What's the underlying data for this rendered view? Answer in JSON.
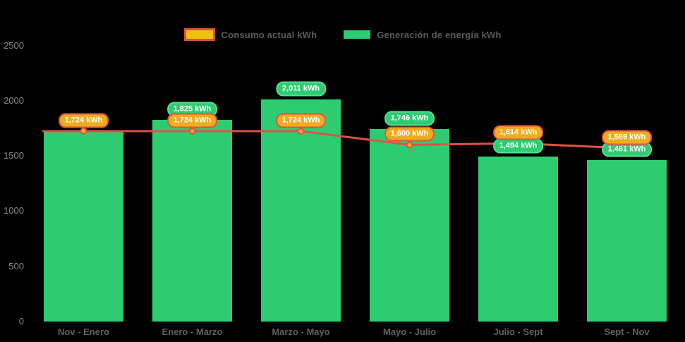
{
  "chart": {
    "background": "#000000",
    "bar_color": "#2ecc71",
    "line_color": "#de5246",
    "point_fill": "#f2a72e",
    "point_stroke": "#de5246",
    "badge_orange_fill": "#efac1f",
    "badge_orange_border": "#e2553f",
    "badge_green_fill": "#2ecc71",
    "badge_green_border": "#5adc96"
  },
  "legend": {
    "consumption": {
      "label": "Consumo actual kWh",
      "swatch_fill": "#eec111",
      "swatch_border": "#d9503f"
    },
    "generation": {
      "label": "Generación de energía kWh",
      "swatch_fill": "#2ecc71",
      "swatch_border": "#2ecc71"
    }
  },
  "chart_data": {
    "type": "bar",
    "categories": [
      "Nov - Enero",
      "Enero - Marzo",
      "Marzo - Mayo",
      "Mayo - Julio",
      "Julio - Sept",
      "Sept - Nov"
    ],
    "series": [
      {
        "name": "Consumo actual kWh",
        "type": "line",
        "color": "#de5246",
        "values": [
          1724,
          1724,
          1724,
          1600,
          1614,
          1569
        ],
        "labels": [
          "1,724 kWh",
          "1,724 kWh",
          "1,724 kWh",
          "1,600 kWh",
          "1,614 kWh",
          "1,569 kWh"
        ]
      },
      {
        "name": "Generación de energía kWh",
        "type": "bar",
        "color": "#2ecc71",
        "values": [
          1724,
          1825,
          2011,
          1746,
          1494,
          1461
        ],
        "labels": [
          "1,724 kWh",
          "1,825 kWh",
          "2,011 kWh",
          "1,746 kWh",
          "1,494 kWh",
          "1,461 kWh"
        ]
      }
    ],
    "y_ticks": [
      0,
      500,
      1000,
      1500,
      2000,
      2500
    ],
    "ylim": [
      0,
      2500
    ],
    "grid": false,
    "legend_position": "top"
  }
}
